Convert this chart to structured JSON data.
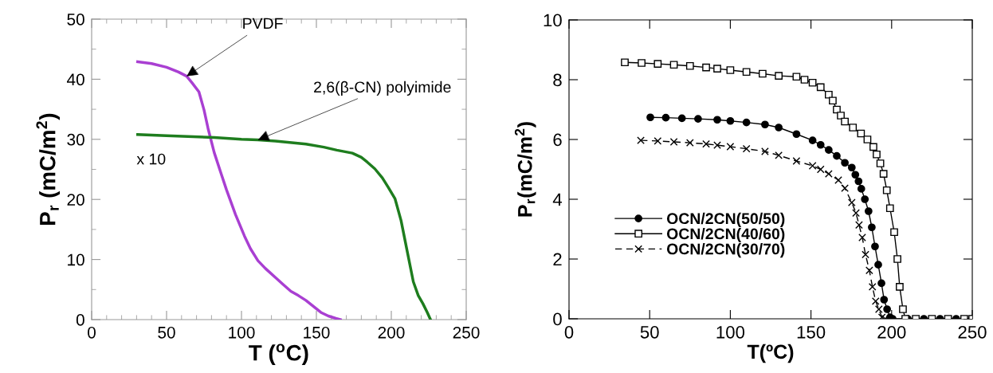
{
  "chart_data": [
    {
      "type": "line",
      "xlabel": "T ($^{o}$C)",
      "ylabel": "P$_{r}$ (mC/m$^{2}$)",
      "xlim": [
        0,
        250
      ],
      "xticks": [
        0,
        50,
        100,
        150,
        200,
        250
      ],
      "ylim": [
        0,
        50
      ],
      "yticks": [
        0,
        10,
        20,
        30,
        40,
        50
      ],
      "grid": false,
      "legend": false,
      "marker": "none",
      "line_style": "solid",
      "annotations": [
        {
          "text": "PVDF",
          "x": 63.4,
          "y": 40.5
        },
        {
          "text": "2,6(β-CN) polyimide",
          "x": 111,
          "y": 29.9
        },
        "x 10"
      ],
      "series": [
        {
          "color": "#a93fd2",
          "x": [
            30.7,
            40,
            50,
            58,
            63.4,
            67,
            71.6,
            75,
            77.7,
            81.8,
            86,
            90,
            96,
            102,
            106,
            111,
            116,
            122.7,
            128,
            133,
            138,
            143,
            148,
            153,
            158,
            163,
            166
          ],
          "values": [
            42.9,
            42.6,
            42.0,
            41.2,
            40.5,
            39.4,
            37.9,
            34.9,
            31.8,
            27.8,
            24.6,
            21.6,
            17.5,
            13.9,
            11.8,
            9.8,
            8.5,
            7.0,
            5.8,
            4.7,
            4.0,
            3.2,
            2.2,
            1.2,
            0.6,
            0.2,
            0
          ]
        },
        {
          "color": "#1e7d1e",
          "x": [
            30.7,
            50,
            81.8,
            100,
            111,
            122.7,
            143,
            155,
            163.6,
            174,
            180,
            184,
            189,
            194,
            198,
            202.5,
            206.5,
            210.6,
            214.7,
            218,
            221,
            224,
            226
          ],
          "values": [
            30.8,
            30.6,
            30.3,
            30.0,
            29.9,
            29.7,
            29.2,
            28.7,
            28.2,
            27.7,
            27.0,
            26.2,
            25.1,
            23.6,
            22.0,
            20.1,
            16.5,
            11.4,
            6.3,
            4.0,
            2.7,
            1.2,
            0.1
          ]
        }
      ]
    },
    {
      "type": "line",
      "xlabel": "T(ºC)",
      "ylabel": "P$_{r}$(mC/m$^{2}$)",
      "xlim": [
        0,
        250
      ],
      "xticks": [
        0,
        50,
        100,
        150,
        200,
        250
      ],
      "ylim": [
        0,
        10
      ],
      "yticks": [
        0,
        2,
        4,
        6,
        8,
        10
      ],
      "grid": false,
      "legend": "left",
      "series": [
        {
          "name": "OCN/2CN(50/50)",
          "color": "#000000",
          "marker": "circle",
          "line_style": "solid",
          "x": [
            50.4,
            60,
            70,
            80,
            91.9,
            100,
            110,
            121.5,
            130,
            141,
            151,
            156,
            161,
            166,
            171,
            175.3,
            177.5,
            179.5,
            181.2,
            183.4,
            185.7,
            187.7,
            189.7,
            191.7,
            193.7,
            195.3,
            197.2,
            199,
            200.6,
            210,
            220,
            230,
            240,
            250
          ],
          "values": [
            6.74,
            6.73,
            6.71,
            6.69,
            6.66,
            6.62,
            6.57,
            6.5,
            6.4,
            6.18,
            5.97,
            5.82,
            5.65,
            5.45,
            5.22,
            5.06,
            4.82,
            4.6,
            4.35,
            4.0,
            3.6,
            3.06,
            2.42,
            1.81,
            1.19,
            0.64,
            0.32,
            0.05,
            0,
            0,
            0,
            0,
            0,
            0
          ]
        },
        {
          "name": "OCN/2CN(40/60)",
          "color": "#000000",
          "marker": "square",
          "line_style": "solid",
          "x": [
            34.6,
            45,
            55,
            65,
            75,
            85,
            91.9,
            100,
            110,
            120,
            130,
            141,
            146,
            151,
            156,
            161,
            163.5,
            166,
            168.5,
            171,
            176,
            181,
            185,
            188.7,
            190.7,
            193,
            195,
            197,
            199,
            201.6,
            203.6,
            205,
            207,
            208.5,
            215,
            225,
            235,
            245,
            250
          ],
          "values": [
            8.58,
            8.56,
            8.53,
            8.5,
            8.46,
            8.41,
            8.37,
            8.32,
            8.26,
            8.2,
            8.13,
            8.1,
            8.0,
            7.9,
            7.75,
            7.5,
            7.3,
            7.0,
            6.8,
            6.6,
            6.4,
            6.2,
            6.0,
            5.75,
            5.5,
            5.2,
            4.85,
            4.3,
            3.7,
            2.9,
            2.0,
            1.07,
            0.32,
            0,
            0,
            0,
            0,
            0,
            0
          ]
        },
        {
          "name": "OCN/2CN(30/70)",
          "color": "#000000",
          "marker": "cross",
          "line_style": "dashed",
          "x": [
            44.5,
            55,
            65,
            75,
            85,
            91.9,
            100,
            110,
            121.5,
            130,
            141,
            151,
            156,
            161,
            167,
            171,
            175.3,
            177.9,
            179.8,
            181.8,
            183.8,
            186.2,
            188.1,
            190.1,
            192.1,
            194,
            196
          ],
          "values": [
            5.97,
            5.95,
            5.92,
            5.89,
            5.85,
            5.81,
            5.76,
            5.69,
            5.6,
            5.47,
            5.28,
            5.12,
            5.0,
            4.85,
            4.64,
            4.37,
            3.89,
            3.54,
            3.14,
            2.72,
            2.15,
            1.62,
            1.07,
            0.59,
            0.32,
            0.05,
            0
          ]
        }
      ]
    }
  ]
}
